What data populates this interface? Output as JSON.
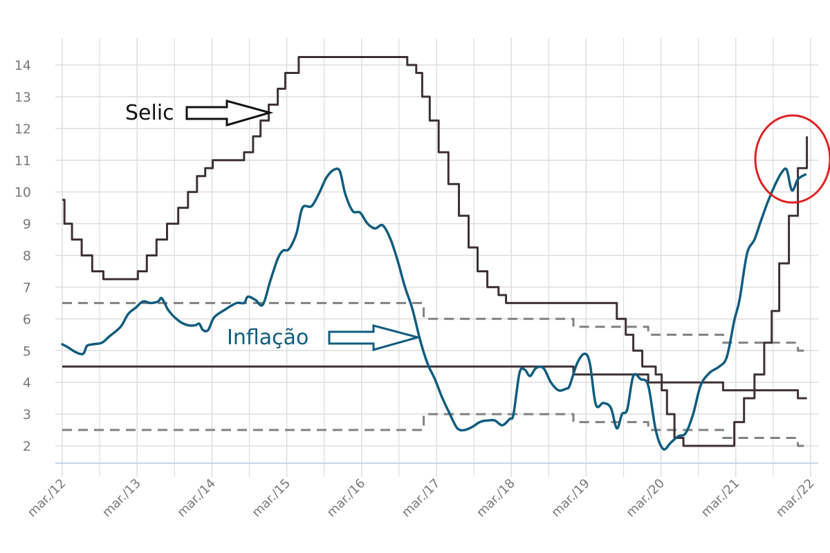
{
  "chart_data": {
    "type": "line",
    "title": "",
    "xlabel": "",
    "ylabel": "",
    "grid": true,
    "legend": "none",
    "ylim": [
      1.5,
      14.8
    ],
    "xlim": [
      2012.16,
      2022.2
    ],
    "y_ticks": [
      2,
      3,
      4,
      5,
      6,
      7,
      8,
      9,
      10,
      11,
      12,
      13,
      14
    ],
    "y_tick_labels": [
      "2",
      "3",
      "4",
      "5",
      "6",
      "7",
      "8",
      "9",
      "10",
      "11",
      "12",
      "13",
      "14"
    ],
    "x_ticks": [
      2012.17,
      2013.17,
      2014.17,
      2015.17,
      2016.17,
      2017.17,
      2018.17,
      2019.17,
      2020.17,
      2021.17,
      2022.17
    ],
    "x_tick_labels": [
      "mar./12",
      "mar./13",
      "mar./14",
      "mar./15",
      "mar./16",
      "mar./17",
      "mar./18",
      "mar./19",
      "mar./20",
      "mar./21",
      "mar./22"
    ],
    "annotations": {
      "selic": "Selic",
      "inflacao": "Inflação"
    },
    "colors": {
      "selic": "#3e3035",
      "inflacao": "#0f5c7e",
      "meta": "#3e3035",
      "bands": "#808080",
      "highlight": "#e02020",
      "grid": "#dddddd"
    },
    "series": [
      {
        "key": "selic",
        "style": "step",
        "points": [
          [
            2012.17,
            9.75
          ],
          [
            2012.2,
            9.0
          ],
          [
            2012.3,
            8.5
          ],
          [
            2012.43,
            8.0
          ],
          [
            2012.57,
            7.5
          ],
          [
            2012.72,
            7.25
          ],
          [
            2013.18,
            7.5
          ],
          [
            2013.3,
            8.0
          ],
          [
            2013.43,
            8.5
          ],
          [
            2013.57,
            9.0
          ],
          [
            2013.72,
            9.5
          ],
          [
            2013.85,
            10.0
          ],
          [
            2013.97,
            10.5
          ],
          [
            2014.08,
            10.75
          ],
          [
            2014.18,
            11.0
          ],
          [
            2014.6,
            11.25
          ],
          [
            2014.72,
            11.75
          ],
          [
            2014.82,
            12.25
          ],
          [
            2014.93,
            12.75
          ],
          [
            2015.05,
            13.25
          ],
          [
            2015.15,
            13.75
          ],
          [
            2015.33,
            14.25
          ],
          [
            2016.78,
            14.0
          ],
          [
            2016.9,
            13.75
          ],
          [
            2016.98,
            13.0
          ],
          [
            2017.08,
            12.25
          ],
          [
            2017.2,
            11.25
          ],
          [
            2017.33,
            10.25
          ],
          [
            2017.47,
            9.25
          ],
          [
            2017.6,
            8.25
          ],
          [
            2017.72,
            7.5
          ],
          [
            2017.85,
            7.0
          ],
          [
            2018.0,
            6.75
          ],
          [
            2018.1,
            6.5
          ],
          [
            2019.58,
            6.0
          ],
          [
            2019.7,
            5.5
          ],
          [
            2019.8,
            5.0
          ],
          [
            2019.92,
            4.5
          ],
          [
            2020.1,
            4.25
          ],
          [
            2020.18,
            3.75
          ],
          [
            2020.25,
            3.0
          ],
          [
            2020.35,
            2.25
          ],
          [
            2020.47,
            2.0
          ],
          [
            2021.15,
            2.75
          ],
          [
            2021.28,
            3.5
          ],
          [
            2021.42,
            4.25
          ],
          [
            2021.55,
            5.25
          ],
          [
            2021.65,
            6.25
          ],
          [
            2021.75,
            7.75
          ],
          [
            2021.88,
            9.25
          ],
          [
            2022.0,
            10.75
          ],
          [
            2022.12,
            11.75
          ]
        ]
      },
      {
        "key": "inflacao",
        "style": "smooth",
        "points": [
          [
            2012.17,
            5.2
          ],
          [
            2012.25,
            5.1
          ],
          [
            2012.35,
            4.95
          ],
          [
            2012.45,
            4.9
          ],
          [
            2012.5,
            5.15
          ],
          [
            2012.58,
            5.2
          ],
          [
            2012.7,
            5.25
          ],
          [
            2012.8,
            5.45
          ],
          [
            2012.95,
            5.75
          ],
          [
            2013.05,
            6.15
          ],
          [
            2013.15,
            6.35
          ],
          [
            2013.25,
            6.55
          ],
          [
            2013.35,
            6.5
          ],
          [
            2013.45,
            6.55
          ],
          [
            2013.5,
            6.65
          ],
          [
            2013.58,
            6.3
          ],
          [
            2013.65,
            6.1
          ],
          [
            2013.75,
            5.9
          ],
          [
            2013.85,
            5.8
          ],
          [
            2013.95,
            5.8
          ],
          [
            2014.0,
            5.85
          ],
          [
            2014.05,
            5.65
          ],
          [
            2014.12,
            5.65
          ],
          [
            2014.2,
            6.05
          ],
          [
            2014.35,
            6.3
          ],
          [
            2014.5,
            6.5
          ],
          [
            2014.6,
            6.5
          ],
          [
            2014.65,
            6.7
          ],
          [
            2014.75,
            6.6
          ],
          [
            2014.85,
            6.45
          ],
          [
            2014.95,
            7.2
          ],
          [
            2015.05,
            7.9
          ],
          [
            2015.12,
            8.15
          ],
          [
            2015.2,
            8.2
          ],
          [
            2015.3,
            8.7
          ],
          [
            2015.38,
            9.5
          ],
          [
            2015.5,
            9.55
          ],
          [
            2015.6,
            9.95
          ],
          [
            2015.7,
            10.45
          ],
          [
            2015.8,
            10.7
          ],
          [
            2015.88,
            10.65
          ],
          [
            2015.95,
            9.95
          ],
          [
            2016.05,
            9.4
          ],
          [
            2016.15,
            9.35
          ],
          [
            2016.25,
            9.0
          ],
          [
            2016.35,
            8.85
          ],
          [
            2016.45,
            8.95
          ],
          [
            2016.55,
            8.55
          ],
          [
            2016.65,
            7.85
          ],
          [
            2016.75,
            7.0
          ],
          [
            2016.85,
            6.3
          ],
          [
            2016.95,
            5.35
          ],
          [
            2017.05,
            4.6
          ],
          [
            2017.15,
            4.1
          ],
          [
            2017.25,
            3.5
          ],
          [
            2017.35,
            3.0
          ],
          [
            2017.45,
            2.55
          ],
          [
            2017.55,
            2.5
          ],
          [
            2017.65,
            2.6
          ],
          [
            2017.75,
            2.75
          ],
          [
            2017.85,
            2.8
          ],
          [
            2017.95,
            2.8
          ],
          [
            2018.05,
            2.65
          ],
          [
            2018.15,
            2.85
          ],
          [
            2018.2,
            3.0
          ],
          [
            2018.28,
            4.3
          ],
          [
            2018.35,
            4.4
          ],
          [
            2018.42,
            4.2
          ],
          [
            2018.5,
            4.45
          ],
          [
            2018.6,
            4.45
          ],
          [
            2018.7,
            4.0
          ],
          [
            2018.8,
            3.75
          ],
          [
            2018.9,
            3.8
          ],
          [
            2018.95,
            3.9
          ],
          [
            2019.05,
            4.6
          ],
          [
            2019.15,
            4.9
          ],
          [
            2019.22,
            4.6
          ],
          [
            2019.3,
            3.3
          ],
          [
            2019.4,
            3.35
          ],
          [
            2019.5,
            3.2
          ],
          [
            2019.58,
            2.55
          ],
          [
            2019.65,
            3.0
          ],
          [
            2019.72,
            3.15
          ],
          [
            2019.8,
            4.2
          ],
          [
            2019.9,
            4.1
          ],
          [
            2020.0,
            3.9
          ],
          [
            2020.1,
            2.5
          ],
          [
            2020.2,
            1.9
          ],
          [
            2020.3,
            2.1
          ],
          [
            2020.4,
            2.3
          ],
          [
            2020.5,
            2.4
          ],
          [
            2020.6,
            3.0
          ],
          [
            2020.7,
            3.9
          ],
          [
            2020.82,
            4.3
          ],
          [
            2020.95,
            4.5
          ],
          [
            2021.05,
            4.8
          ],
          [
            2021.15,
            5.95
          ],
          [
            2021.22,
            6.6
          ],
          [
            2021.32,
            8.05
          ],
          [
            2021.42,
            8.5
          ],
          [
            2021.5,
            9.05
          ],
          [
            2021.6,
            9.7
          ],
          [
            2021.7,
            10.25
          ],
          [
            2021.78,
            10.6
          ],
          [
            2021.85,
            10.7
          ],
          [
            2021.92,
            10.05
          ],
          [
            2022.0,
            10.4
          ],
          [
            2022.1,
            10.55
          ]
        ]
      },
      {
        "key": "meta",
        "style": "step",
        "points": [
          [
            2012.17,
            4.5
          ],
          [
            2019.0,
            4.25
          ],
          [
            2020.0,
            4.0
          ],
          [
            2021.0,
            3.75
          ],
          [
            2022.0,
            3.5
          ],
          [
            2022.12,
            3.5
          ]
        ]
      },
      {
        "key": "banda_superior",
        "style": "step-dashed",
        "points": [
          [
            2012.17,
            6.5
          ],
          [
            2017.0,
            6.0
          ],
          [
            2019.0,
            5.75
          ],
          [
            2020.0,
            5.5
          ],
          [
            2021.0,
            5.25
          ],
          [
            2022.0,
            5.0
          ],
          [
            2022.12,
            5.0
          ]
        ]
      },
      {
        "key": "banda_inferior",
        "style": "step-dashed",
        "points": [
          [
            2012.17,
            2.5
          ],
          [
            2017.0,
            3.0
          ],
          [
            2019.0,
            2.75
          ],
          [
            2020.0,
            2.5
          ],
          [
            2021.0,
            2.25
          ],
          [
            2022.0,
            2.0
          ],
          [
            2022.12,
            2.0
          ]
        ]
      }
    ]
  }
}
